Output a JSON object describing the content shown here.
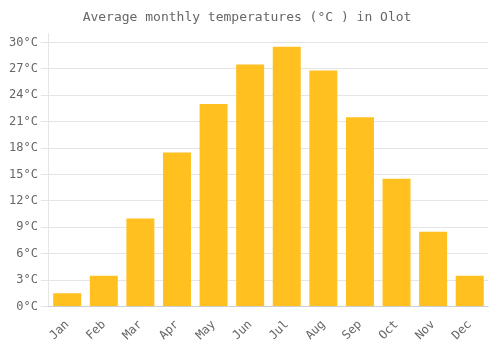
{
  "chart_data": {
    "type": "bar",
    "title": "Average monthly temperatures (°C ) in Olot",
    "categories": [
      "Jan",
      "Feb",
      "Mar",
      "Apr",
      "May",
      "Jun",
      "Jul",
      "Aug",
      "Sep",
      "Oct",
      "Nov",
      "Dec"
    ],
    "values": [
      1.5,
      3.5,
      10.0,
      17.5,
      23.0,
      27.5,
      29.5,
      26.8,
      21.5,
      14.5,
      8.5,
      3.5
    ],
    "color": "#FFC020",
    "ylim": [
      0,
      31
    ],
    "yticks": [
      {
        "value": 0,
        "label": "0°C"
      },
      {
        "value": 3,
        "label": "3°C"
      },
      {
        "value": 6,
        "label": "6°C"
      },
      {
        "value": 9,
        "label": "9°C"
      },
      {
        "value": 12,
        "label": "12°C"
      },
      {
        "value": 15,
        "label": "15°C"
      },
      {
        "value": 18,
        "label": "18°C"
      },
      {
        "value": 21,
        "label": "21°C"
      },
      {
        "value": 24,
        "label": "24°C"
      },
      {
        "value": 27,
        "label": "27°C"
      },
      {
        "value": 30,
        "label": "30°C"
      }
    ],
    "grid": true
  }
}
